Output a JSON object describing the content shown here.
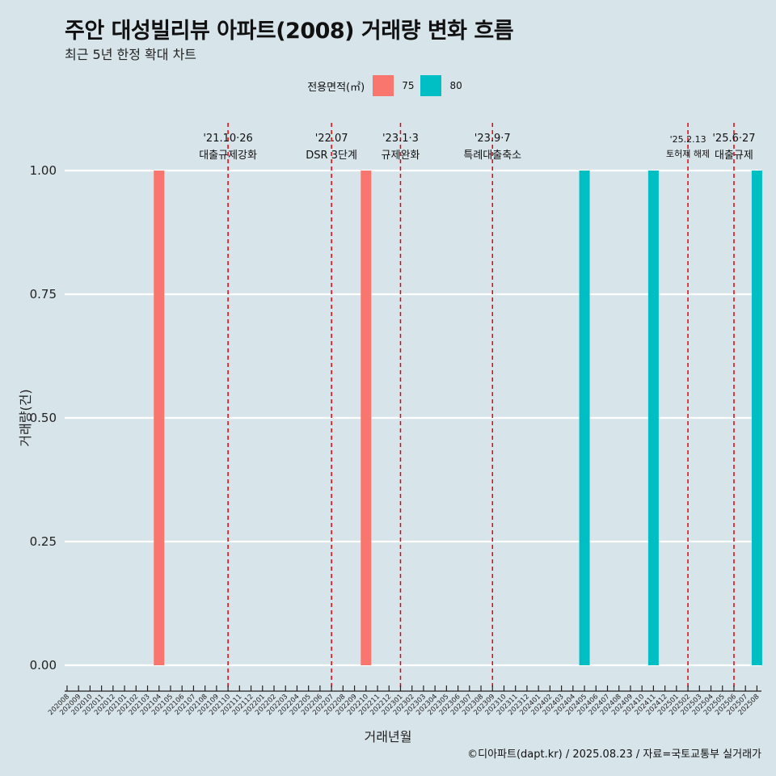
{
  "title": "주안 대성빌리뷰 아파트(2008) 거래량 변화 흐름",
  "subtitle": "최근 5년 한정 확대 차트",
  "caption": "©디아파트(dapt.kr) / 2025.08.23 / 자료=국토교통부 실거래가",
  "chart_data": {
    "type": "bar",
    "xlabel": "거래년월",
    "ylabel": "거래량(건)",
    "ylim": [
      0,
      1
    ],
    "yticks": [
      "0.00",
      "0.25",
      "0.50",
      "0.75",
      "1.00"
    ],
    "legend": {
      "title": "전용면적(㎡)",
      "position": "top"
    },
    "categories": [
      "202008",
      "202009",
      "202010",
      "202011",
      "202012",
      "202101",
      "202102",
      "202103",
      "202104",
      "202105",
      "202106",
      "202107",
      "202108",
      "202109",
      "202110",
      "202111",
      "202112",
      "202201",
      "202202",
      "202203",
      "202204",
      "202205",
      "202206",
      "202207",
      "202208",
      "202209",
      "202210",
      "202211",
      "202212",
      "202301",
      "202302",
      "202303",
      "202304",
      "202305",
      "202306",
      "202307",
      "202308",
      "202309",
      "202310",
      "202311",
      "202312",
      "202401",
      "202402",
      "202403",
      "202404",
      "202405",
      "202406",
      "202407",
      "202408",
      "202409",
      "202410",
      "202411",
      "202412",
      "202501",
      "202502",
      "202503",
      "202504",
      "202505",
      "202506",
      "202507",
      "202508"
    ],
    "series": [
      {
        "name": "75",
        "color": "#f8766d",
        "points": [
          {
            "x": "202104",
            "y": 1
          },
          {
            "x": "202210",
            "y": 1
          }
        ]
      },
      {
        "name": "80",
        "color": "#00bfc4",
        "points": [
          {
            "x": "202405",
            "y": 1
          },
          {
            "x": "202411",
            "y": 1
          },
          {
            "x": "202508",
            "y": 1
          }
        ]
      }
    ],
    "annotations": [
      {
        "x": "202110",
        "date": "'21.10·26",
        "label": "대출규제강화"
      },
      {
        "x": "202207",
        "date": "'22.07",
        "label": "DSR 3단계"
      },
      {
        "x": "202301",
        "date": "'23.1·3",
        "label": "규제완화"
      },
      {
        "x": "202309",
        "date": "'23.9·7",
        "label": "특례대출축소"
      },
      {
        "x": "202502",
        "date": "'25.2.13",
        "label": "토허제 해제"
      },
      {
        "x": "202506",
        "date": "'25.6·27",
        "label": "대출규제"
      }
    ]
  }
}
